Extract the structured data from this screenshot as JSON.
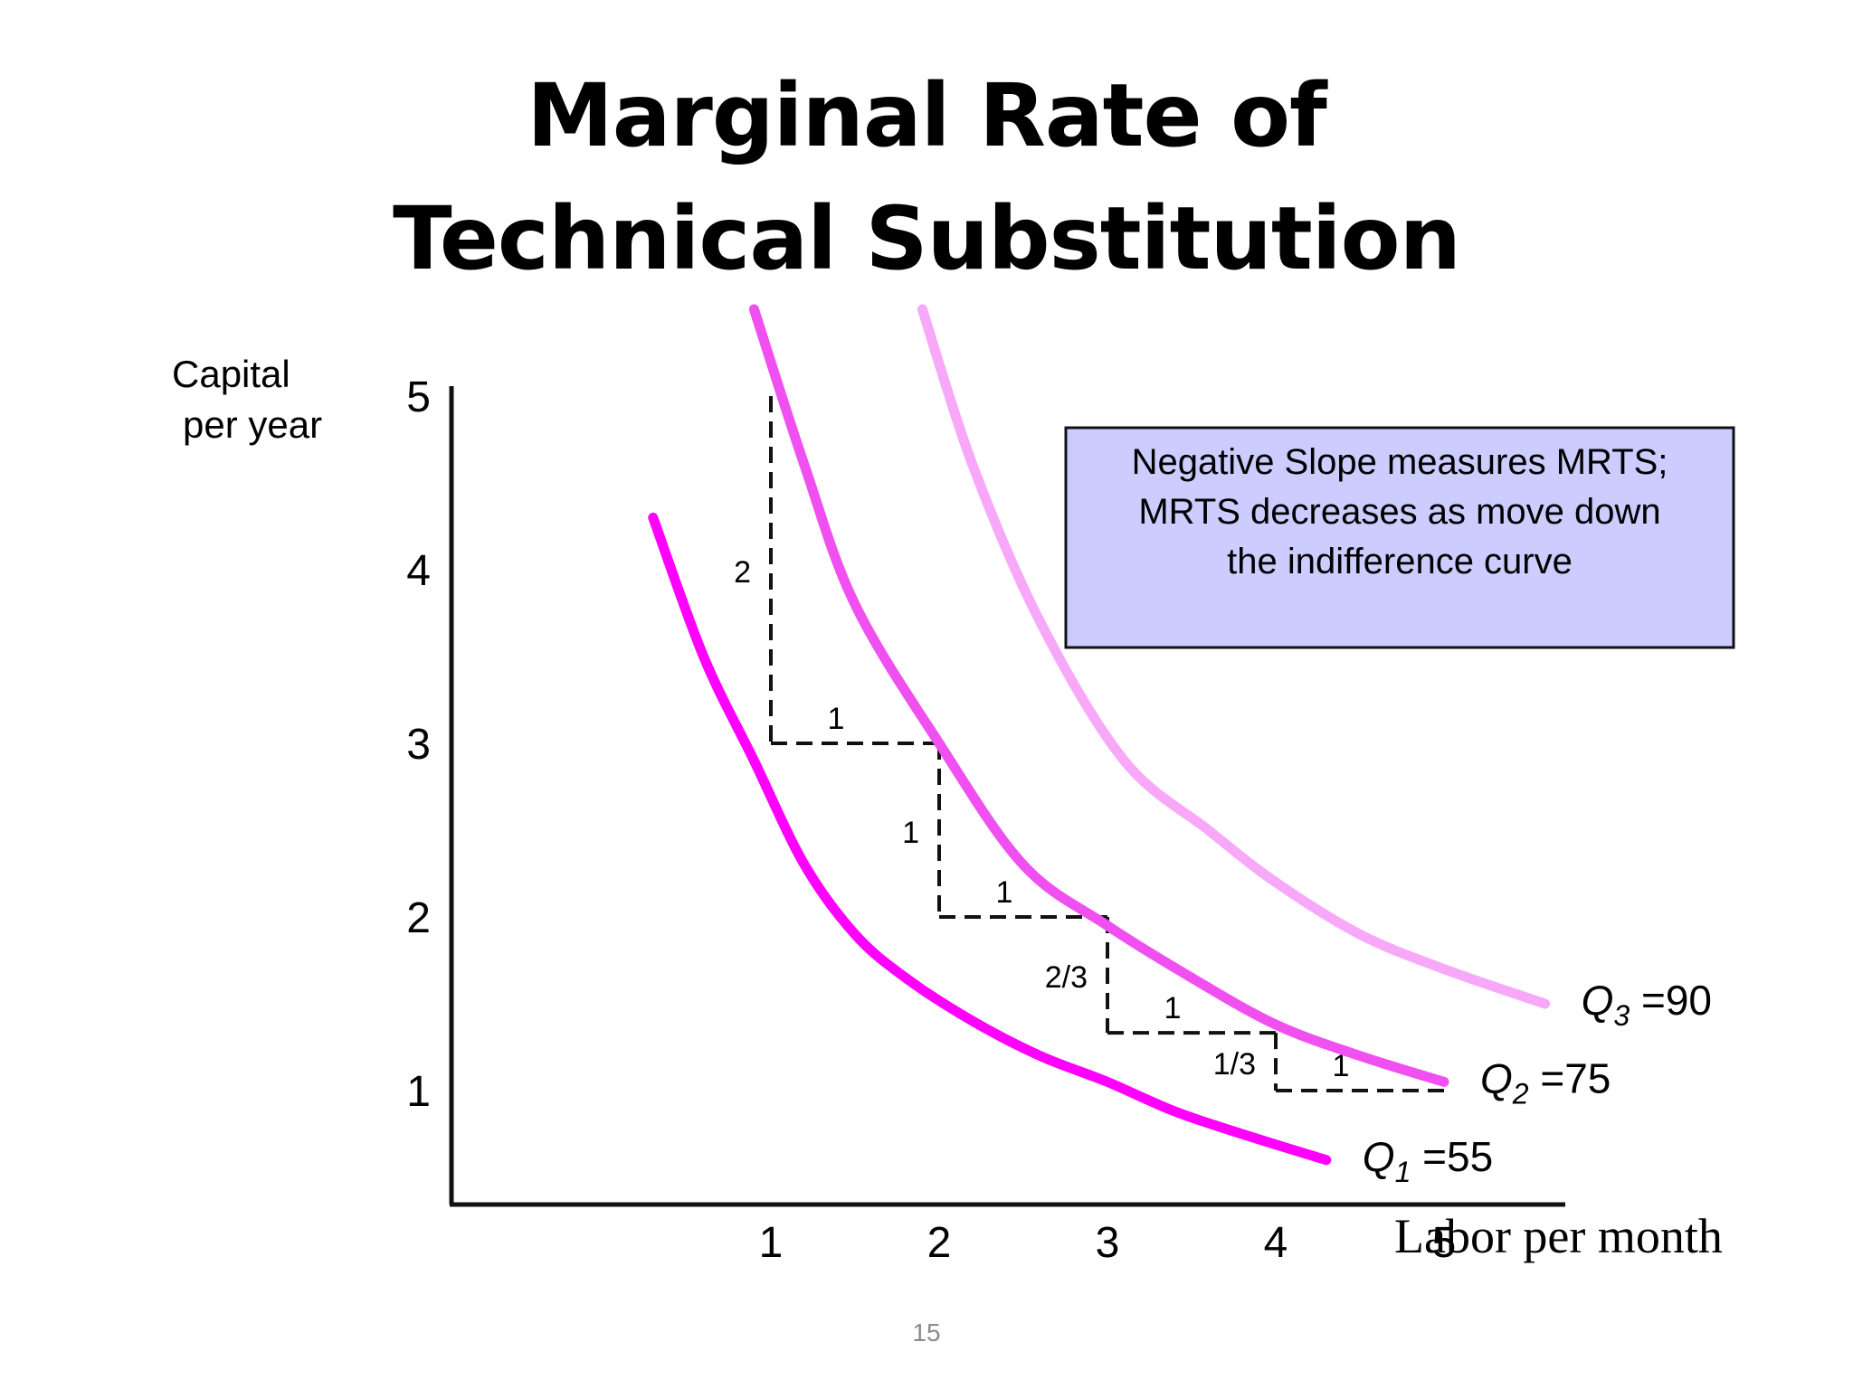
{
  "slide": {
    "title_line1": "Marginal Rate of",
    "title_line2": "Technical Substitution",
    "page_number": "15"
  },
  "chart_data": {
    "type": "line",
    "title": "Marginal Rate of Technical Substitution",
    "xlabel": "Labor per month",
    "ylabel_line1": "Capital",
    "ylabel_line2": "per year",
    "xlim": [
      0.1,
      5.7
    ],
    "ylim": [
      0.1,
      5.6
    ],
    "x_ticks": [
      "1",
      "2",
      "3",
      "4",
      "5"
    ],
    "y_ticks": [
      "1",
      "2",
      "3",
      "4",
      "5"
    ],
    "grid": false,
    "series": [
      {
        "name": "Q1 =55",
        "label_letter": "Q",
        "label_sub": "1",
        "label_value": " =55",
        "color": "#ff00ff",
        "points": [
          [
            0.3,
            4.3
          ],
          [
            0.6,
            3.5
          ],
          [
            0.9,
            2.9
          ],
          [
            1.2,
            2.3
          ],
          [
            1.5,
            1.9
          ],
          [
            1.8,
            1.65
          ],
          [
            2.2,
            1.4
          ],
          [
            2.6,
            1.2
          ],
          [
            3.0,
            1.05
          ],
          [
            3.4,
            0.88
          ],
          [
            3.8,
            0.75
          ],
          [
            4.3,
            0.6
          ]
        ]
      },
      {
        "name": "Q2 =75",
        "label_letter": "Q",
        "label_sub": "2",
        "label_value": " =75",
        "color": "#f050f0",
        "points": [
          [
            0.9,
            5.5
          ],
          [
            1.2,
            4.6
          ],
          [
            1.5,
            3.8
          ],
          [
            2.0,
            3.0
          ],
          [
            2.5,
            2.3
          ],
          [
            3.0,
            1.95
          ],
          [
            3.5,
            1.65
          ],
          [
            4.0,
            1.38
          ],
          [
            4.5,
            1.2
          ],
          [
            5.0,
            1.05
          ]
        ]
      },
      {
        "name": "Q3 =90",
        "label_letter": "Q",
        "label_sub": "3",
        "label_value": " =90",
        "color": "#f8a8f8",
        "points": [
          [
            1.9,
            5.5
          ],
          [
            2.2,
            4.6
          ],
          [
            2.6,
            3.7
          ],
          [
            3.1,
            2.9
          ],
          [
            3.6,
            2.5
          ],
          [
            4.0,
            2.2
          ],
          [
            4.5,
            1.9
          ],
          [
            5.0,
            1.7
          ],
          [
            5.6,
            1.5
          ]
        ]
      }
    ],
    "steps": [
      {
        "x": 1,
        "y_from": 5,
        "y_to": 3,
        "dy_label": "2",
        "dx_label": "1"
      },
      {
        "x": 2,
        "y_from": 3,
        "y_to": 2,
        "dy_label": "1",
        "dx_label": "1"
      },
      {
        "x": 3,
        "y_from": 2,
        "y_to": 1.333,
        "dy_label": "2/3",
        "dx_label": "1"
      },
      {
        "x": 4,
        "y_from": 1.333,
        "y_to": 1.0,
        "dy_label": "1/3",
        "dx_label": "1"
      }
    ],
    "annotation": {
      "text_lines": [
        "Negative Slope measures MRTS;",
        "MRTS decreases as move down",
        "the indifference curve"
      ],
      "background": "#ccccff"
    }
  }
}
